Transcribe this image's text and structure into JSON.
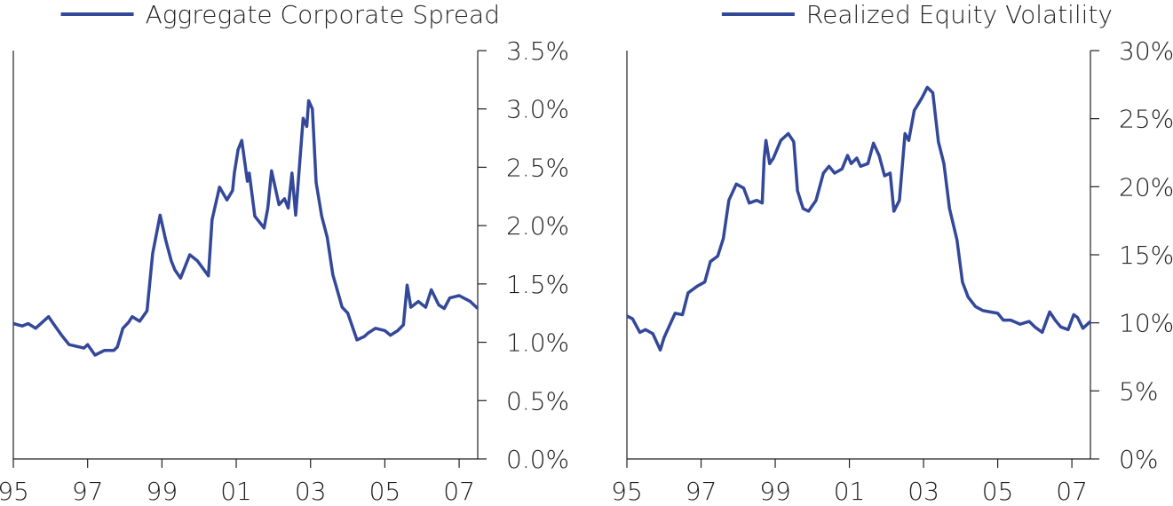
{
  "chart_data": [
    {
      "type": "line",
      "legend": "top-right",
      "y_axis_side": "right",
      "series": [
        {
          "name": "Aggregate Corporate Spread",
          "color": "#34489a",
          "values": [
            1.16,
            1.14,
            1.16,
            1.12,
            1.22,
            1.15,
            1.06,
            0.98,
            0.95,
            0.98,
            0.89,
            0.93,
            0.93,
            0.96,
            1.12,
            1.17,
            1.22,
            1.18,
            1.27,
            1.76,
            2.09,
            1.88,
            1.7,
            1.62,
            1.55,
            1.75,
            1.7,
            1.57,
            2.05,
            2.33,
            2.22,
            2.3,
            2.45,
            2.65,
            2.73,
            2.38,
            2.45,
            2.08,
            1.98,
            2.15,
            2.47,
            2.18,
            2.23,
            2.15,
            2.45,
            2.09,
            2.92,
            2.85,
            3.07,
            3.0,
            2.37,
            2.08,
            1.9,
            1.58,
            1.3,
            1.25,
            1.02,
            1.05,
            1.08,
            1.12,
            1.1,
            1.06,
            1.1,
            1.15,
            1.49,
            1.3,
            1.35,
            1.3,
            1.45,
            1.32,
            1.29,
            1.38,
            1.4,
            1.35,
            1.29
          ]
        }
      ],
      "x": [
        1995.0,
        1995.24,
        1995.4,
        1995.6,
        1995.95,
        1996.1,
        1996.3,
        1996.5,
        1996.9,
        1997.0,
        1997.2,
        1997.45,
        1997.7,
        1997.8,
        1997.95,
        1998.1,
        1998.2,
        1998.4,
        1998.6,
        1998.75,
        1998.95,
        1999.1,
        1999.25,
        1999.35,
        1999.5,
        1999.75,
        1999.95,
        2000.25,
        2000.35,
        2000.55,
        2000.75,
        2000.9,
        2000.95,
        2001.05,
        2001.15,
        2001.3,
        2001.35,
        2001.5,
        2001.75,
        2001.85,
        2001.95,
        2002.15,
        2002.3,
        2002.4,
        2002.5,
        2002.6,
        2002.8,
        2002.9,
        2002.95,
        2003.05,
        2003.15,
        2003.3,
        2003.45,
        2003.6,
        2003.85,
        2004.0,
        2004.25,
        2004.45,
        2004.55,
        2004.75,
        2005.0,
        2005.15,
        2005.35,
        2005.5,
        2005.6,
        2005.7,
        2005.9,
        2006.1,
        2006.25,
        2006.45,
        2006.6,
        2006.75,
        2007.0,
        2007.3,
        2007.5
      ],
      "xlim": [
        1995,
        2007.5
      ],
      "xticks": [
        {
          "value": 1995,
          "label": "95"
        },
        {
          "value": 1997,
          "label": "97"
        },
        {
          "value": 1999,
          "label": "99"
        },
        {
          "value": 2001,
          "label": "01"
        },
        {
          "value": 2003,
          "label": "03"
        },
        {
          "value": 2005,
          "label": "05"
        },
        {
          "value": 2007,
          "label": "07"
        }
      ],
      "ylim": [
        0,
        3.5
      ],
      "yticks": [
        {
          "value": 0,
          "label": "0.0%"
        },
        {
          "value": 0.5,
          "label": "0.5%"
        },
        {
          "value": 1,
          "label": "1.0%"
        },
        {
          "value": 1.5,
          "label": "1.5%"
        },
        {
          "value": 2,
          "label": "2.0%"
        },
        {
          "value": 2.5,
          "label": "2.5%"
        },
        {
          "value": 3,
          "label": "3.0%"
        },
        {
          "value": 3.5,
          "label": "3.5%"
        }
      ]
    },
    {
      "type": "line",
      "legend": "top-right",
      "y_axis_side": "right",
      "series": [
        {
          "name": "Realized Equity Volatility",
          "color": "#34489a",
          "values": [
            10.5,
            10.3,
            9.3,
            9.5,
            9.2,
            8.0,
            8.9,
            9.8,
            10.7,
            10.6,
            12.2,
            12.7,
            13.0,
            14.5,
            14.9,
            16.2,
            19.0,
            20.2,
            19.9,
            18.8,
            19.0,
            18.8,
            22.0,
            23.4,
            21.7,
            22.1,
            23.4,
            23.9,
            23.3,
            19.7,
            18.4,
            18.2,
            19.0,
            21.0,
            21.5,
            21.0,
            21.3,
            22.3,
            21.7,
            22.1,
            21.5,
            21.7,
            23.2,
            22.3,
            20.8,
            21.0,
            18.2,
            19.0,
            23.9,
            23.4,
            25.6,
            26.5,
            27.3,
            26.9,
            23.3,
            21.7,
            18.4,
            16.1,
            13.0,
            11.9,
            11.2,
            10.9,
            10.8,
            10.7,
            10.2,
            10.2,
            9.9,
            10.1,
            9.7,
            9.3,
            10.8,
            10.2,
            9.7,
            9.5,
            10.6,
            10.4,
            9.6,
            10.1
          ]
        }
      ],
      "x": [
        1995.0,
        1995.15,
        1995.35,
        1995.5,
        1995.7,
        1995.9,
        1996.0,
        1996.15,
        1996.3,
        1996.5,
        1996.65,
        1996.9,
        1997.1,
        1997.25,
        1997.45,
        1997.6,
        1997.75,
        1997.95,
        1998.15,
        1998.3,
        1998.5,
        1998.65,
        1998.7,
        1998.75,
        1998.85,
        1998.95,
        1999.15,
        1999.35,
        1999.5,
        1999.6,
        1999.75,
        1999.9,
        2000.1,
        2000.3,
        2000.45,
        2000.6,
        2000.8,
        2000.95,
        2001.05,
        2001.2,
        2001.3,
        2001.5,
        2001.65,
        2001.8,
        2001.95,
        2002.1,
        2002.2,
        2002.35,
        2002.5,
        2002.6,
        2002.75,
        2002.95,
        2003.1,
        2003.25,
        2003.4,
        2003.55,
        2003.7,
        2003.9,
        2004.05,
        2004.2,
        2004.4,
        2004.6,
        2004.8,
        2005.0,
        2005.15,
        2005.35,
        2005.6,
        2005.85,
        2006.0,
        2006.2,
        2006.4,
        2006.55,
        2006.7,
        2006.9,
        2007.05,
        2007.15,
        2007.3,
        2007.5
      ],
      "xlim": [
        1995,
        2007.5
      ],
      "xticks": [
        {
          "value": 1995,
          "label": "95"
        },
        {
          "value": 1997,
          "label": "97"
        },
        {
          "value": 1999,
          "label": "99"
        },
        {
          "value": 2001,
          "label": "01"
        },
        {
          "value": 2003,
          "label": "03"
        },
        {
          "value": 2005,
          "label": "05"
        },
        {
          "value": 2007,
          "label": "07"
        }
      ],
      "ylim": [
        0,
        30
      ],
      "yticks": [
        {
          "value": 0,
          "label": "0%"
        },
        {
          "value": 5,
          "label": "5%"
        },
        {
          "value": 10,
          "label": "10%"
        },
        {
          "value": 15,
          "label": "15%"
        },
        {
          "value": 20,
          "label": "20%"
        },
        {
          "value": 25,
          "label": "25%"
        },
        {
          "value": 30,
          "label": "30%"
        }
      ]
    }
  ]
}
